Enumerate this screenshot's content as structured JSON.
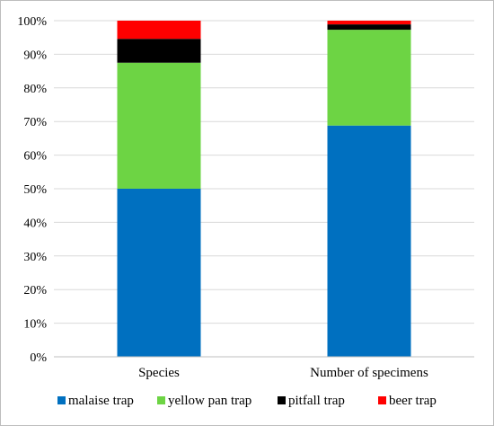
{
  "chart_data": {
    "type": "bar",
    "stacked": true,
    "percent_stacked": true,
    "categories": [
      "Species",
      "Number of specimens"
    ],
    "series": [
      {
        "name": "malaise trap",
        "color": "#0070c0",
        "values": [
          50.0,
          68.8
        ]
      },
      {
        "name": "yellow pan trap",
        "color": "#6dd444",
        "values": [
          37.5,
          28.5
        ]
      },
      {
        "name": "pitfall trap",
        "color": "#000000",
        "values": [
          7.1,
          1.6
        ]
      },
      {
        "name": "beer trap",
        "color": "#ff0000",
        "values": [
          5.4,
          1.1
        ]
      }
    ],
    "y_ticks": [
      "0%",
      "10%",
      "20%",
      "30%",
      "40%",
      "50%",
      "60%",
      "70%",
      "80%",
      "90%",
      "100%"
    ],
    "ylim": [
      0,
      100
    ],
    "grid": true,
    "legend_position": "bottom"
  }
}
